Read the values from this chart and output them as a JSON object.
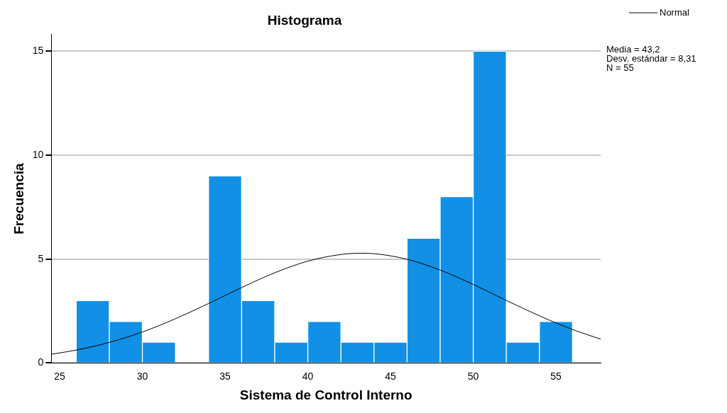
{
  "chart_data": {
    "type": "histogram",
    "title": "Histograma",
    "xlabel": "Sistema de Control Interno",
    "ylabel": "Frecuencia",
    "bins": [
      26,
      28,
      30,
      32,
      34,
      36,
      38,
      40,
      42,
      44,
      46,
      48,
      50,
      52,
      54,
      56
    ],
    "values": [
      3,
      2,
      1,
      0,
      9,
      3,
      1,
      2,
      1,
      1,
      6,
      8,
      15,
      1,
      2
    ],
    "color": "#1190e6",
    "series": [
      {
        "name": "Normal",
        "type": "line",
        "color": "#000000",
        "x": [
          24.5,
          26,
          28,
          30,
          32,
          34,
          36,
          38,
          40,
          42,
          43.2,
          44,
          46,
          48,
          50,
          52,
          54,
          56,
          57.7
        ],
        "values": [
          0.42,
          0.62,
          0.99,
          1.49,
          2.13,
          2.86,
          3.63,
          4.34,
          4.9,
          5.22,
          5.28,
          5.26,
          4.99,
          4.47,
          3.78,
          3.01,
          2.27,
          1.61,
          1.15
        ]
      }
    ],
    "xlim": [
      24.5,
      57.7
    ],
    "xticks": [
      25,
      30,
      35,
      40,
      45,
      50,
      55
    ],
    "ylim": [
      0,
      15.8
    ],
    "yticks": [
      0,
      5,
      10,
      15
    ],
    "grid": "y",
    "legend": "top right",
    "marker": "none",
    "annotations": [
      "Media = 43,2",
      "Desv. estándar = 8,31",
      "N = 55"
    ]
  }
}
